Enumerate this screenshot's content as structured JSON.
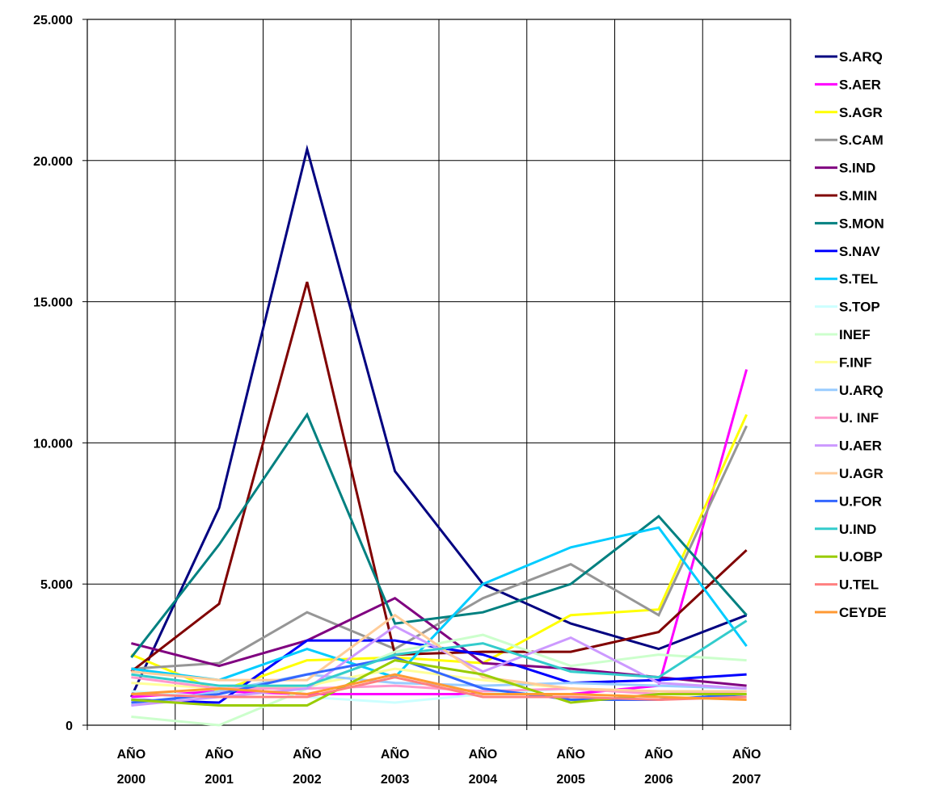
{
  "chart_data": {
    "type": "line",
    "title": "",
    "xlabel": "",
    "ylabel": "",
    "ylim": [
      0,
      25000
    ],
    "yticks": [
      0,
      5000,
      10000,
      15000,
      20000,
      25000
    ],
    "ytick_labels": [
      "0",
      "5.000",
      "10.000",
      "15.000",
      "20.000",
      "25.000"
    ],
    "categories": [
      {
        "line1": "AÑO",
        "line2": "2000"
      },
      {
        "line1": "AÑO",
        "line2": "2001"
      },
      {
        "line1": "AÑO",
        "line2": "2002"
      },
      {
        "line1": "AÑO",
        "line2": "2003"
      },
      {
        "line1": "AÑO",
        "line2": "2004"
      },
      {
        "line1": "AÑO",
        "line2": "2005"
      },
      {
        "line1": "AÑO",
        "line2": "2006"
      },
      {
        "line1": "AÑO",
        "line2": "2007"
      }
    ],
    "grid": true,
    "legend_position": "right",
    "series": [
      {
        "name": "S.ARQ",
        "color": "#000080",
        "values": [
          1000,
          7700,
          20400,
          9000,
          5000,
          3600,
          2700,
          3900
        ]
      },
      {
        "name": "S.AER",
        "color": "#ff00ff",
        "values": [
          1000,
          1200,
          1100,
          1100,
          1100,
          1100,
          1400,
          12600
        ]
      },
      {
        "name": "S.AGR",
        "color": "#ffff00",
        "values": [
          2500,
          1200,
          2300,
          2400,
          2200,
          3900,
          4100,
          11000
        ]
      },
      {
        "name": "S.CAM",
        "color": "#969696",
        "values": [
          2000,
          2200,
          4000,
          2700,
          4500,
          5700,
          3900,
          10600
        ]
      },
      {
        "name": "S.IND",
        "color": "#800080",
        "values": [
          2900,
          2100,
          3000,
          4500,
          2200,
          2000,
          1700,
          1400
        ]
      },
      {
        "name": "S.MIN",
        "color": "#800000",
        "values": [
          1900,
          4300,
          15700,
          2500,
          2600,
          2600,
          3300,
          6200
        ]
      },
      {
        "name": "S.MON",
        "color": "#008080",
        "values": [
          2400,
          6400,
          11000,
          3600,
          4000,
          5000,
          7400,
          3900
        ]
      },
      {
        "name": "S.NAV",
        "color": "#0000ff",
        "values": [
          900,
          800,
          3000,
          3000,
          2500,
          1500,
          1600,
          1800
        ]
      },
      {
        "name": "S.TEL",
        "color": "#00ccff",
        "values": [
          2000,
          1600,
          2700,
          1700,
          5000,
          6300,
          7000,
          2800
        ]
      },
      {
        "name": "S.TOP",
        "color": "#ccffff",
        "values": [
          1200,
          1000,
          1000,
          800,
          1100,
          1300,
          1200,
          1100
        ]
      },
      {
        "name": "INEF",
        "color": "#ccffcc",
        "values": [
          300,
          0,
          1300,
          2600,
          3200,
          2100,
          2500,
          2300
        ]
      },
      {
        "name": "F.INF",
        "color": "#ffff99",
        "values": [
          1500,
          1300,
          1400,
          2000,
          1600,
          1300,
          1200,
          1100
        ]
      },
      {
        "name": "U.ARQ",
        "color": "#99ccff",
        "values": [
          700,
          1200,
          1800,
          1500,
          1400,
          1500,
          1400,
          1300
        ]
      },
      {
        "name": "U. INF",
        "color": "#ff99cc",
        "values": [
          1700,
          1300,
          1300,
          1400,
          1200,
          1300,
          1100,
          1200
        ]
      },
      {
        "name": "U.AER",
        "color": "#cc99ff",
        "values": [
          700,
          1000,
          1300,
          3500,
          1900,
          3100,
          1500,
          1300
        ]
      },
      {
        "name": "U.AGR",
        "color": "#ffcc99",
        "values": [
          1900,
          1600,
          1600,
          3900,
          1700,
          1300,
          1200,
          1200
        ]
      },
      {
        "name": "U.FOR",
        "color": "#3366ff",
        "values": [
          800,
          1100,
          1800,
          2400,
          1300,
          900,
          900,
          1100
        ]
      },
      {
        "name": "U.IND",
        "color": "#33cccc",
        "values": [
          1800,
          1400,
          1400,
          2500,
          2900,
          1900,
          1700,
          3700
        ]
      },
      {
        "name": "U.OBP",
        "color": "#99cc00",
        "values": [
          900,
          700,
          700,
          2300,
          1800,
          800,
          1100,
          1100
        ]
      },
      {
        "name": "U.TEL",
        "color": "#ff8080",
        "values": [
          1100,
          1000,
          1000,
          1700,
          1000,
          1000,
          900,
          1000
        ]
      },
      {
        "name": "CEYDE",
        "color": "#ff9933",
        "values": [
          1100,
          1300,
          1100,
          1800,
          1100,
          1100,
          1000,
          900
        ]
      }
    ]
  }
}
